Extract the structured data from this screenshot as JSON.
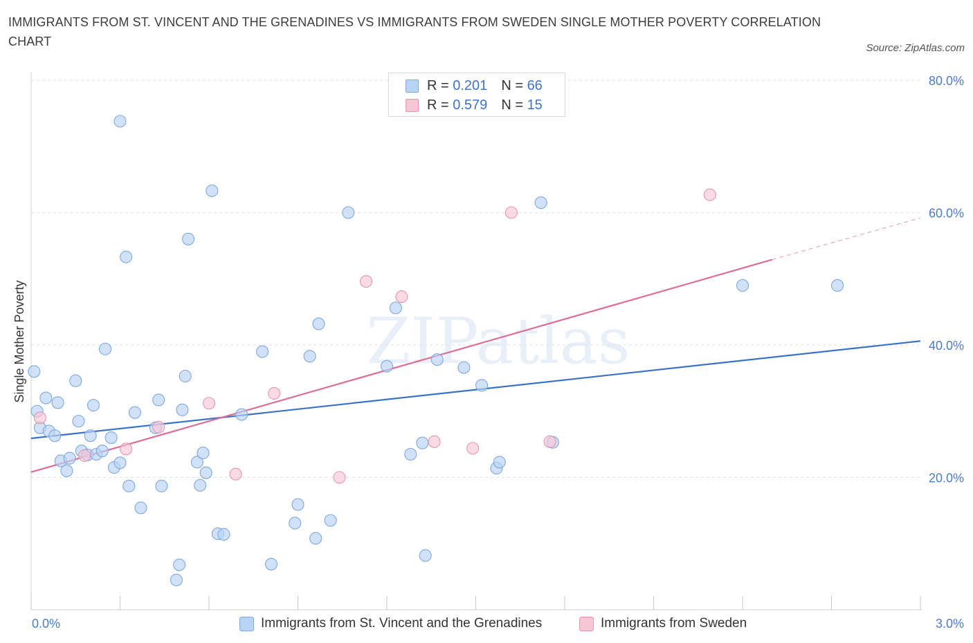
{
  "title": "IMMIGRANTS FROM ST. VINCENT AND THE GRENADINES VS IMMIGRANTS FROM SWEDEN SINGLE MOTHER POVERTY CORRELATION CHART",
  "source": "Source: ZipAtlas.com",
  "watermark": "ZIPatlas",
  "colors": {
    "blue_fill": "#b9d3f5",
    "blue_stroke": "#7da8e0",
    "blue_line": "#3a72c8",
    "pink_fill": "#f7c6d5",
    "pink_stroke": "#e796b0",
    "pink_line": "#e06b93",
    "tick_text": "#4a7bd0",
    "grid": "#e2e2e2"
  },
  "legend": {
    "rows": [
      {
        "r_label": "R = ",
        "r_value": "0.201",
        "n_label": "N = ",
        "n_value": "66"
      },
      {
        "r_label": "R = ",
        "r_value": "0.579",
        "n_label": "N = ",
        "n_value": "15"
      }
    ]
  },
  "chart_data": {
    "type": "scatter",
    "title": "IMMIGRANTS FROM ST. VINCENT AND THE GRENADINES VS IMMIGRANTS FROM SWEDEN SINGLE MOTHER POVERTY CORRELATION CHART",
    "xlabel": "",
    "ylabel": "Single Mother Poverty",
    "xlim": [
      0,
      3.0
    ],
    "ylim": [
      0,
      80
    ],
    "x_tick_labels": [
      "0.0%",
      "3.0%"
    ],
    "y_ticks": [
      20,
      40,
      60,
      80
    ],
    "y_tick_labels": [
      "20.0%",
      "40.0%",
      "60.0%",
      "80.0%"
    ],
    "grid": true,
    "legend_position": "bottom",
    "series": [
      {
        "name": "Immigrants from St. Vincent and the Grenadines",
        "color": "#b9d3f5",
        "R": 0.201,
        "N": 66,
        "trend": {
          "x": [
            0.0,
            3.0
          ],
          "y": [
            25.9,
            40.6
          ]
        },
        "points": [
          [
            0.01,
            36.0
          ],
          [
            0.02,
            30.0
          ],
          [
            0.03,
            27.5
          ],
          [
            0.05,
            32.0
          ],
          [
            0.06,
            27.0
          ],
          [
            0.08,
            26.3
          ],
          [
            0.09,
            31.3
          ],
          [
            0.1,
            22.5
          ],
          [
            0.12,
            21.0
          ],
          [
            0.13,
            22.9
          ],
          [
            0.15,
            34.6
          ],
          [
            0.16,
            28.5
          ],
          [
            0.17,
            24.0
          ],
          [
            0.19,
            23.4
          ],
          [
            0.2,
            26.3
          ],
          [
            0.21,
            30.9
          ],
          [
            0.22,
            23.5
          ],
          [
            0.24,
            24.0
          ],
          [
            0.25,
            39.4
          ],
          [
            0.27,
            26.0
          ],
          [
            0.28,
            21.5
          ],
          [
            0.3,
            22.2
          ],
          [
            0.3,
            73.8
          ],
          [
            0.32,
            53.3
          ],
          [
            0.33,
            18.7
          ],
          [
            0.35,
            29.8
          ],
          [
            0.37,
            15.4
          ],
          [
            0.42,
            27.5
          ],
          [
            0.43,
            31.7
          ],
          [
            0.44,
            18.7
          ],
          [
            0.49,
            4.5
          ],
          [
            0.5,
            6.8
          ],
          [
            0.51,
            30.2
          ],
          [
            0.52,
            35.3
          ],
          [
            0.53,
            56.0
          ],
          [
            0.56,
            22.3
          ],
          [
            0.57,
            18.8
          ],
          [
            0.58,
            23.7
          ],
          [
            0.59,
            20.7
          ],
          [
            0.61,
            63.3
          ],
          [
            0.63,
            11.5
          ],
          [
            0.65,
            11.4
          ],
          [
            0.71,
            29.5
          ],
          [
            0.78,
            39.0
          ],
          [
            0.81,
            6.9
          ],
          [
            0.89,
            13.1
          ],
          [
            0.9,
            15.9
          ],
          [
            0.94,
            38.3
          ],
          [
            0.96,
            10.8
          ],
          [
            0.97,
            43.2
          ],
          [
            1.01,
            13.5
          ],
          [
            1.07,
            60.0
          ],
          [
            1.2,
            36.8
          ],
          [
            1.23,
            45.6
          ],
          [
            1.28,
            23.5
          ],
          [
            1.32,
            25.2
          ],
          [
            1.33,
            8.2
          ],
          [
            1.37,
            37.8
          ],
          [
            1.46,
            36.6
          ],
          [
            1.52,
            33.9
          ],
          [
            1.57,
            21.4
          ],
          [
            1.58,
            22.3
          ],
          [
            1.72,
            61.5
          ],
          [
            1.76,
            25.3
          ],
          [
            2.4,
            49.0
          ],
          [
            2.72,
            49.0
          ]
        ]
      },
      {
        "name": "Immigrants from Sweden",
        "color": "#f7c6d5",
        "R": 0.579,
        "N": 15,
        "trend": {
          "x": [
            0.0,
            2.5
          ],
          "y": [
            20.8,
            52.9
          ],
          "dashed_to": [
            3.0,
            59.2
          ]
        },
        "points": [
          [
            0.03,
            29.0
          ],
          [
            0.18,
            23.3
          ],
          [
            0.32,
            24.3
          ],
          [
            0.43,
            27.6
          ],
          [
            0.6,
            31.2
          ],
          [
            0.69,
            20.5
          ],
          [
            0.82,
            32.7
          ],
          [
            1.04,
            20.0
          ],
          [
            1.13,
            49.6
          ],
          [
            1.25,
            47.3
          ],
          [
            1.36,
            25.4
          ],
          [
            1.49,
            24.4
          ],
          [
            1.62,
            60.0
          ],
          [
            1.75,
            25.4
          ],
          [
            2.29,
            62.7
          ]
        ]
      }
    ]
  }
}
